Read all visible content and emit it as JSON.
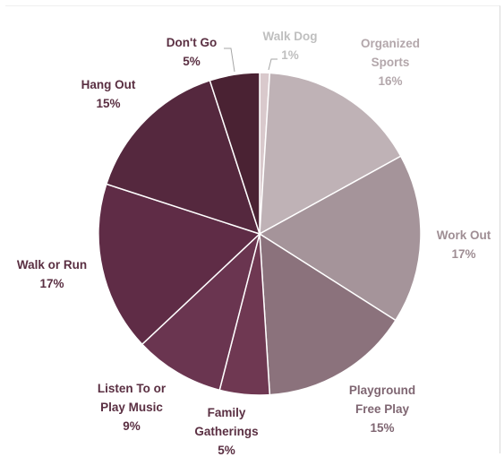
{
  "chart_data": {
    "type": "pie",
    "title": "",
    "slices": [
      {
        "label": [
          "Walk Dog"
        ],
        "pct_text": "1%",
        "value": 1,
        "color": "#d9c9cc",
        "text_color": "#bfbfbf"
      },
      {
        "label": [
          "Organized",
          "Sports"
        ],
        "pct_text": "16%",
        "value": 16,
        "color": "#bfb2b6",
        "text_color": "#b3a7ab"
      },
      {
        "label": [
          "Work Out"
        ],
        "pct_text": "17%",
        "value": 17,
        "color": "#a5949a",
        "text_color": "#9f8e94"
      },
      {
        "label": [
          "Playground",
          "Free Play"
        ],
        "pct_text": "15%",
        "value": 15,
        "color": "#8b727c",
        "text_color": "#7f6672"
      },
      {
        "label": [
          "Family",
          "Gatherings"
        ],
        "pct_text": "5%",
        "value": 5,
        "color": "#6f3852",
        "text_color": "#5a2f42"
      },
      {
        "label": [
          "Listen To or",
          "Play Music"
        ],
        "pct_text": "9%",
        "value": 9,
        "color": "#6a3550",
        "text_color": "#5a2f42"
      },
      {
        "label": [
          "Walk or Run"
        ],
        "pct_text": "17%",
        "value": 17,
        "color": "#5f2c46",
        "text_color": "#5a2f42"
      },
      {
        "label": [
          "Hang Out"
        ],
        "pct_text": "15%",
        "value": 15,
        "color": "#55283e",
        "text_color": "#5a2f42"
      },
      {
        "label": [
          "Don't Go"
        ],
        "pct_text": "5%",
        "value": 5,
        "color": "#4a2233",
        "text_color": "#5a2f42"
      }
    ]
  }
}
